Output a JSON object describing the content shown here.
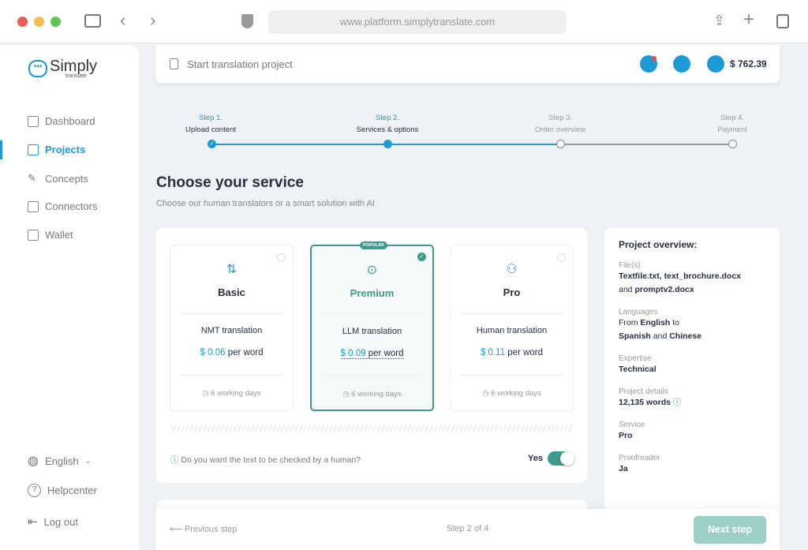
{
  "browser": {
    "url": "www.platform.simplytranslate.com"
  },
  "logo": {
    "name": "Simply",
    "sub": "translate"
  },
  "sidebar": {
    "items": [
      {
        "label": "Dashboard"
      },
      {
        "label": "Projects"
      },
      {
        "label": "Concepts"
      },
      {
        "label": "Connectors"
      },
      {
        "label": "Wallet"
      }
    ],
    "language": "English",
    "help": "Helpcenter",
    "logout": "Log out"
  },
  "header": {
    "title": "Start translation project",
    "balance": "$ 762.39"
  },
  "steps": [
    {
      "num": "Step 1.",
      "title": "Upload content"
    },
    {
      "num": "Step 2.",
      "title": "Services & options"
    },
    {
      "num": "Step 3.",
      "title": "Order overview"
    },
    {
      "num": "Step 4.",
      "title": "Payment"
    }
  ],
  "page": {
    "title": "Choose your service",
    "subtitle": "Choose our human translators or a smart solution with AI"
  },
  "services": [
    {
      "name": "Basic",
      "desc": "NMT translation",
      "price": "$ 0.06",
      "unit": "per word",
      "days": "6 working days"
    },
    {
      "name": "Premium",
      "badge": "POPULAR",
      "desc": "LLM translation",
      "price": "$ 0.09",
      "unit": "per word",
      "days": "6 working days"
    },
    {
      "name": "Pro",
      "desc": "Human translation",
      "price": "$ 0.11",
      "unit": "per word",
      "days": "6 working days"
    }
  ],
  "human_check": {
    "question": "Do you want the text to be checked by a human?",
    "value": "Yes"
  },
  "overview": {
    "title": "Project overview:",
    "files_label": "File(s)",
    "files_a": "Textfile.txt, text_brochure.docx",
    "files_and": "and",
    "files_b": "promptv2.docx",
    "lang_label": "Languages",
    "from": "From",
    "src": "English",
    "to": "to",
    "tgt1": "Spanish",
    "and": "and",
    "tgt2": "Chinese",
    "expertise_label": "Expertise",
    "expertise": "Technical",
    "details_label": "Project details",
    "words": "12,135 words",
    "service_label": "Service",
    "service": "Pro",
    "proof_label": "Proofreader",
    "proof": "Ja"
  },
  "footer": {
    "prev": "Previous step",
    "progress": "Step 2 of 4",
    "next": "Next step"
  },
  "colors": {
    "accent": "#1c9ad6",
    "teal": "#3d9b8d"
  }
}
